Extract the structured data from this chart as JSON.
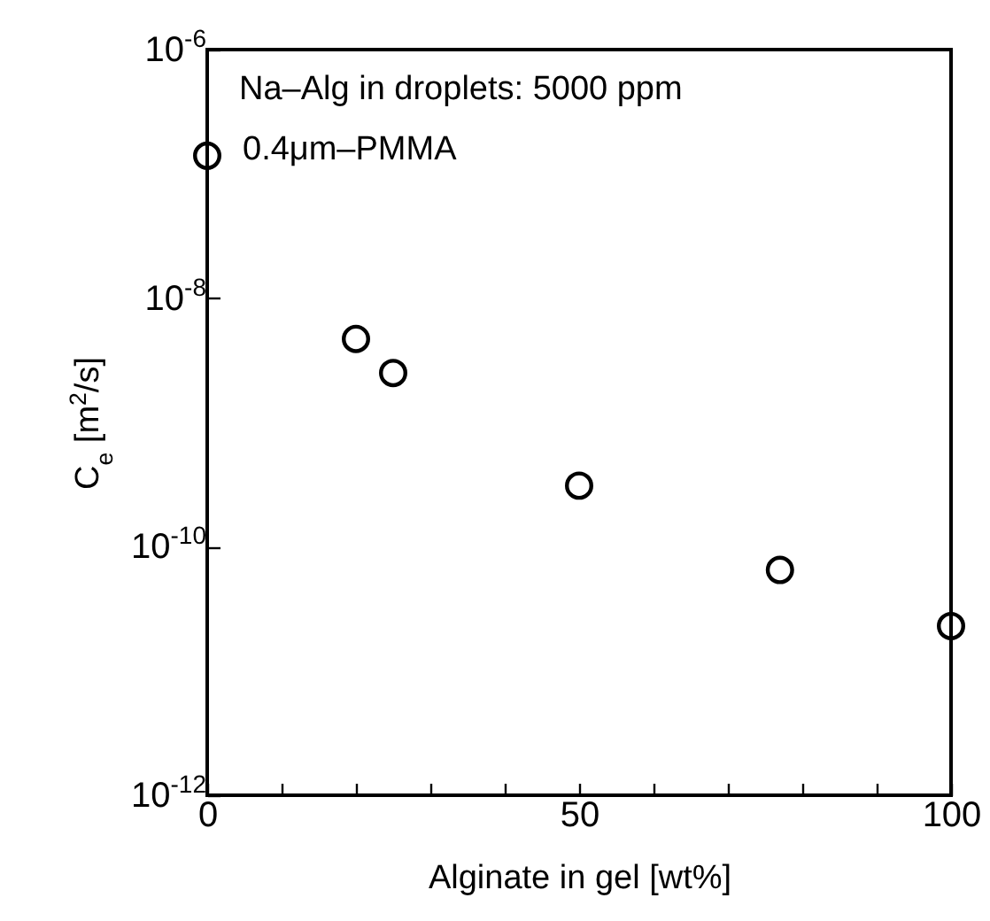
{
  "chart_data": {
    "type": "scatter",
    "xlabel": "Alginate in gel  [wt%]",
    "ylabel": "C$_{e}$  [m$^{2}$/s]",
    "annotations": [
      "Na–Alg in droplets: 5000 ppm",
      "0.4μm–PMMA"
    ],
    "x": [
      0,
      20,
      25,
      50,
      77,
      100
    ],
    "values": [
      1.4e-07,
      4.7e-09,
      2.5e-09,
      3.1e-10,
      6.5e-11,
      2.3e-11
    ],
    "color": "#000000",
    "marker": "circle",
    "log": "y",
    "xlim": [
      0,
      100
    ],
    "xticks": [
      0,
      {
        "value": 10,
        "label": null
      },
      {
        "value": 20,
        "label": null
      },
      {
        "value": 30,
        "label": null
      },
      {
        "value": 40,
        "label": null
      },
      50,
      {
        "value": 60,
        "label": null
      },
      {
        "value": 70,
        "label": null
      },
      {
        "value": 80,
        "label": null
      },
      {
        "value": 90,
        "label": null
      },
      100
    ],
    "ylim": [
      1e-12,
      1e-06
    ],
    "yticks": [
      {
        "value": 1e-12,
        "label": "10$^{-12}$"
      },
      {
        "value": 1e-10,
        "label": "10$^{-10}$"
      },
      {
        "value": 1e-08,
        "label": "10$^{-8}$"
      },
      {
        "value": 1e-06,
        "label": "10$^{-6}$"
      }
    ],
    "grid": false
  }
}
